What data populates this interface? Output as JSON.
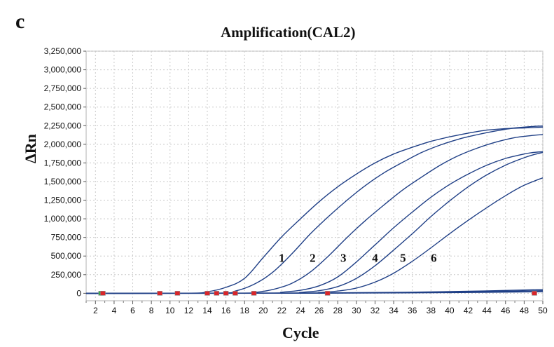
{
  "panel_letter": "c",
  "chart_data": {
    "type": "line",
    "title": "Amplification(CAL2)",
    "xlabel": "Cycle",
    "ylabel": "ΔRn",
    "xlim": [
      1,
      50
    ],
    "ylim": [
      -100000,
      3250000
    ],
    "x_ticks": [
      2,
      4,
      6,
      8,
      10,
      12,
      14,
      16,
      18,
      20,
      22,
      24,
      26,
      28,
      30,
      32,
      34,
      36,
      38,
      40,
      42,
      44,
      46,
      48,
      50
    ],
    "y_ticks": [
      0,
      250000,
      500000,
      750000,
      1000000,
      1250000,
      1500000,
      1750000,
      2000000,
      2250000,
      2500000,
      2750000,
      3000000,
      3250000
    ],
    "y_tick_labels": [
      "0",
      "250,000",
      "500,000",
      "750,000",
      "1,000,000",
      "1,250,000",
      "1,500,000",
      "1,750,000",
      "2,000,000",
      "2,250,000",
      "2,500,000",
      "2,750,000",
      "3,000,000",
      "3,250,000"
    ],
    "grid": true,
    "line_color": "#1f3f86",
    "series": [
      {
        "label": "1",
        "label_pos": [
          22,
          480000
        ],
        "x": [
          1,
          12,
          14,
          16,
          18,
          20,
          22,
          24,
          26,
          28,
          30,
          32,
          34,
          36,
          38,
          40,
          42,
          44,
          46,
          48,
          50
        ],
        "y": [
          0,
          2000,
          20000,
          80000,
          200000,
          480000,
          760000,
          1000000,
          1230000,
          1430000,
          1600000,
          1750000,
          1870000,
          1960000,
          2040000,
          2100000,
          2150000,
          2190000,
          2210000,
          2220000,
          2230000
        ]
      },
      {
        "label": "2",
        "label_pos": [
          25.3,
          480000
        ],
        "x": [
          1,
          15,
          17,
          19,
          21,
          23,
          25,
          27,
          29,
          31,
          33,
          35,
          37,
          39,
          41,
          43,
          45,
          47,
          49,
          50
        ],
        "y": [
          0,
          3000,
          30000,
          120000,
          280000,
          520000,
          790000,
          1030000,
          1250000,
          1450000,
          1620000,
          1760000,
          1890000,
          1990000,
          2070000,
          2130000,
          2180000,
          2220000,
          2240000,
          2245000
        ]
      },
      {
        "label": "3",
        "label_pos": [
          28.6,
          480000
        ],
        "x": [
          1,
          17,
          19,
          21,
          23,
          25,
          27,
          29,
          31,
          33,
          35,
          37,
          39,
          41,
          43,
          45,
          47,
          49,
          50
        ],
        "y": [
          0,
          2000,
          10000,
          50000,
          130000,
          280000,
          500000,
          750000,
          980000,
          1190000,
          1390000,
          1560000,
          1720000,
          1850000,
          1950000,
          2030000,
          2090000,
          2120000,
          2130000
        ]
      },
      {
        "label": "4",
        "label_pos": [
          32,
          480000
        ],
        "x": [
          1,
          20,
          22,
          24,
          26,
          28,
          30,
          32,
          34,
          36,
          38,
          40,
          42,
          44,
          46,
          48,
          49,
          50
        ],
        "y": [
          0,
          3000,
          15000,
          40000,
          100000,
          220000,
          420000,
          650000,
          880000,
          1090000,
          1290000,
          1460000,
          1600000,
          1720000,
          1810000,
          1870000,
          1890000,
          1900000
        ]
      },
      {
        "label": "5",
        "label_pos": [
          35,
          480000
        ],
        "x": [
          1,
          22,
          24,
          26,
          28,
          30,
          32,
          34,
          36,
          38,
          40,
          42,
          44,
          46,
          48,
          49,
          50
        ],
        "y": [
          0,
          3000,
          12000,
          35000,
          90000,
          200000,
          370000,
          580000,
          800000,
          1030000,
          1240000,
          1430000,
          1590000,
          1720000,
          1820000,
          1860000,
          1890000
        ]
      },
      {
        "label": "6",
        "label_pos": [
          38.3,
          480000
        ],
        "x": [
          1,
          24,
          26,
          28,
          30,
          32,
          34,
          36,
          38,
          40,
          42,
          44,
          46,
          48,
          50
        ],
        "y": [
          0,
          2000,
          10000,
          30000,
          70000,
          150000,
          270000,
          430000,
          610000,
          800000,
          980000,
          1150000,
          1310000,
          1450000,
          1550000
        ]
      },
      {
        "label": "",
        "x": [
          1,
          20,
          30,
          40,
          50
        ],
        "y": [
          0,
          2000,
          8000,
          22000,
          50000
        ]
      },
      {
        "label": "",
        "x": [
          1,
          20,
          30,
          40,
          50
        ],
        "y": [
          0,
          1000,
          5000,
          15000,
          35000
        ]
      },
      {
        "label": "",
        "x": [
          1,
          20,
          30,
          40,
          50
        ],
        "y": [
          0,
          500,
          3000,
          9000,
          20000
        ]
      }
    ],
    "markers": [
      {
        "x": 2.6,
        "color": "#3aa64a"
      },
      {
        "x": 2.8,
        "color": "#d9252a"
      },
      {
        "x": 8.9,
        "color": "#d9252a"
      },
      {
        "x": 10.8,
        "color": "#d9252a"
      },
      {
        "x": 14.0,
        "color": "#d9252a"
      },
      {
        "x": 15.0,
        "color": "#d9252a"
      },
      {
        "x": 16.0,
        "color": "#d9252a"
      },
      {
        "x": 17.0,
        "color": "#d9252a"
      },
      {
        "x": 19.0,
        "color": "#d9252a"
      },
      {
        "x": 26.9,
        "color": "#d9252a"
      },
      {
        "x": 49.1,
        "color": "#d9252a"
      }
    ]
  }
}
